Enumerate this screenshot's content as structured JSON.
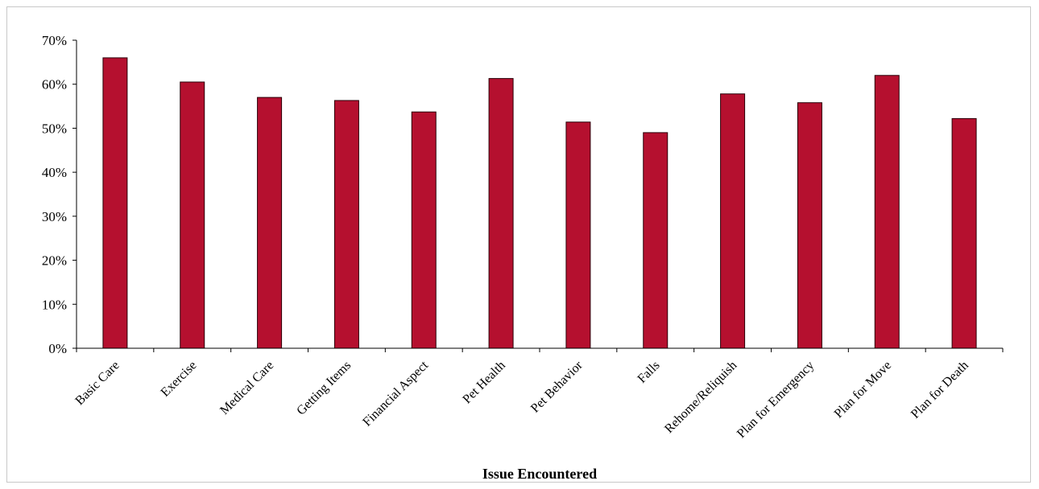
{
  "chart_data": {
    "type": "bar",
    "title": "",
    "xlabel": "Issue Encountered",
    "ylabel": "",
    "ylim": [
      0,
      70
    ],
    "y_ticks": [
      "0%",
      "10%",
      "20%",
      "30%",
      "40%",
      "50%",
      "60%",
      "70%"
    ],
    "y_tick_values": [
      0,
      10,
      20,
      30,
      40,
      50,
      60,
      70
    ],
    "grid": false,
    "legend": "none",
    "bar_color": "#b5102f",
    "categories": [
      "Basic Care",
      "Exercise",
      "Medical Care",
      "Getting Items",
      "Financial Aspect",
      "Pet Health",
      "Pet Behavior",
      "Falls",
      "Rehome/Reliquish",
      "Plan for Emergency",
      "Plan for Move",
      "Plan for Death"
    ],
    "values": [
      66,
      60.5,
      57,
      56.3,
      53.7,
      61.3,
      51.4,
      49,
      57.8,
      55.8,
      62,
      52.2
    ]
  }
}
